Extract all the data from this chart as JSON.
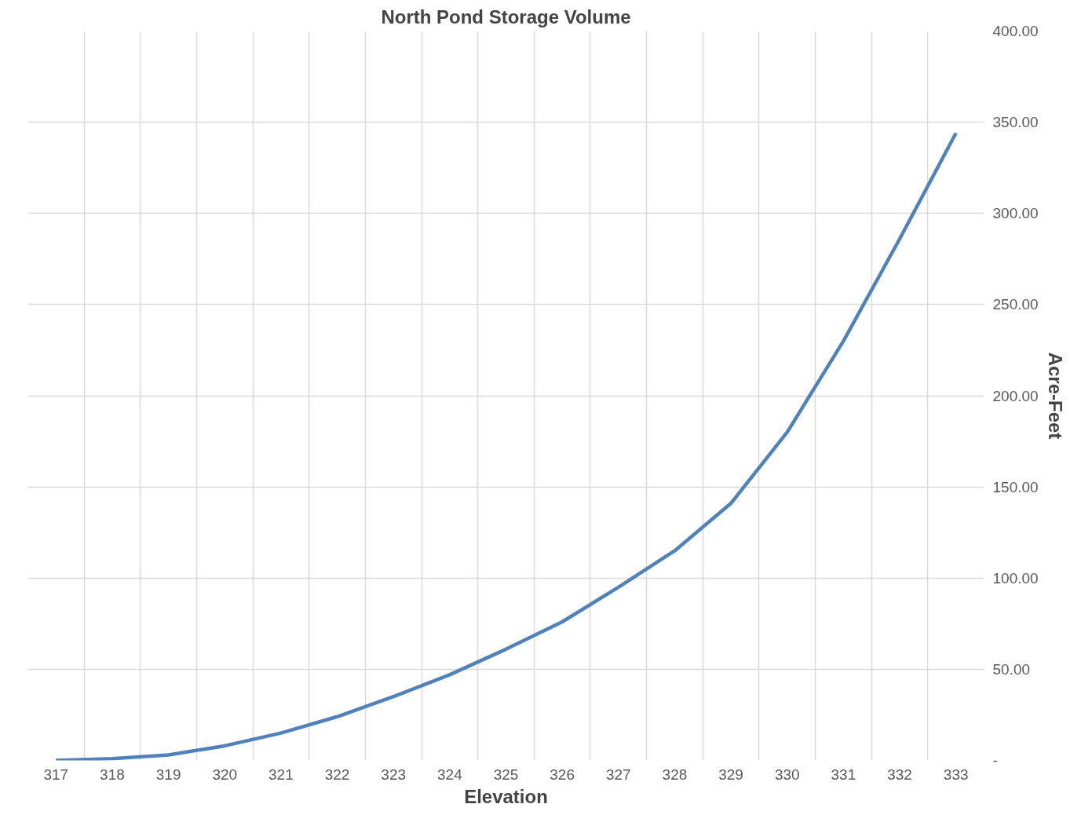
{
  "chart_data": {
    "type": "line",
    "title": "North Pond Storage Volume",
    "xlabel": "Elevation",
    "ylabel": "Acre-Feet",
    "categories": [
      "317",
      "318",
      "319",
      "320",
      "321",
      "322",
      "323",
      "324",
      "325",
      "326",
      "327",
      "328",
      "329",
      "330",
      "331",
      "332",
      "333"
    ],
    "series": [
      {
        "color": "#4f81bd",
        "values": [
          0,
          1,
          3,
          8,
          15,
          24,
          35,
          47,
          61,
          76,
          95,
          115,
          141,
          180,
          230,
          286,
          344
        ]
      }
    ],
    "ylim": [
      0,
      400
    ],
    "yticks": [
      {
        "value": 0,
        "label": "-"
      },
      {
        "value": 50,
        "label": "50.00"
      },
      {
        "value": 100,
        "label": "100.00"
      },
      {
        "value": 150,
        "label": "150.00"
      },
      {
        "value": 200,
        "label": "200.00"
      },
      {
        "value": 250,
        "label": "250.00"
      },
      {
        "value": 300,
        "label": "300.00"
      },
      {
        "value": 350,
        "label": "350.00"
      },
      {
        "value": 400,
        "label": "400.00"
      }
    ],
    "grid": true
  }
}
